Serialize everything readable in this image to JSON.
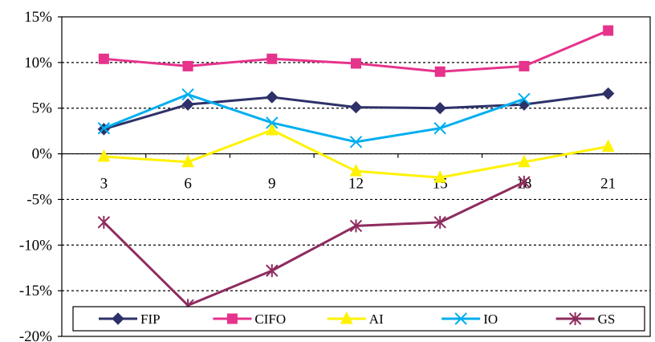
{
  "chart_data": {
    "type": "line",
    "title": "",
    "xlabel": "",
    "ylabel": "",
    "x": [
      3,
      6,
      9,
      12,
      15,
      18,
      21
    ],
    "ylim": [
      -20,
      15
    ],
    "yticks": [
      15,
      10,
      5,
      0,
      -5,
      -10,
      -15,
      -20
    ],
    "ytick_labels": [
      "15%",
      "10%",
      "5%",
      "0%",
      "-5%",
      "-10%",
      "-15%",
      "-20%"
    ],
    "xtick_labels": [
      "3",
      "6",
      "9",
      "12",
      "15",
      "18",
      "21"
    ],
    "grid": "horizontal dashed",
    "legend_position": "bottom",
    "series": [
      {
        "name": "FIP",
        "color": "#2E3168",
        "marker": "diamond",
        "values": [
          2.7,
          5.4,
          6.2,
          5.1,
          5.0,
          5.4,
          6.6
        ]
      },
      {
        "name": "CIFO",
        "color": "#E6338C",
        "marker": "square",
        "values": [
          10.4,
          9.6,
          10.4,
          9.9,
          9.0,
          9.6,
          13.5
        ]
      },
      {
        "name": "AI",
        "color": "#FFF200",
        "marker": "triangle",
        "values": [
          -0.3,
          -0.9,
          2.6,
          -1.9,
          -2.6,
          -0.9,
          0.8
        ]
      },
      {
        "name": "IO",
        "color": "#00AEEF",
        "marker": "x",
        "values": [
          2.8,
          6.5,
          3.4,
          1.3,
          2.8,
          6.0,
          null
        ]
      },
      {
        "name": "GS",
        "color": "#8E2C5E",
        "marker": "star",
        "values": [
          -7.5,
          -16.6,
          -12.8,
          -7.9,
          -7.5,
          -3.1,
          null
        ]
      }
    ]
  }
}
